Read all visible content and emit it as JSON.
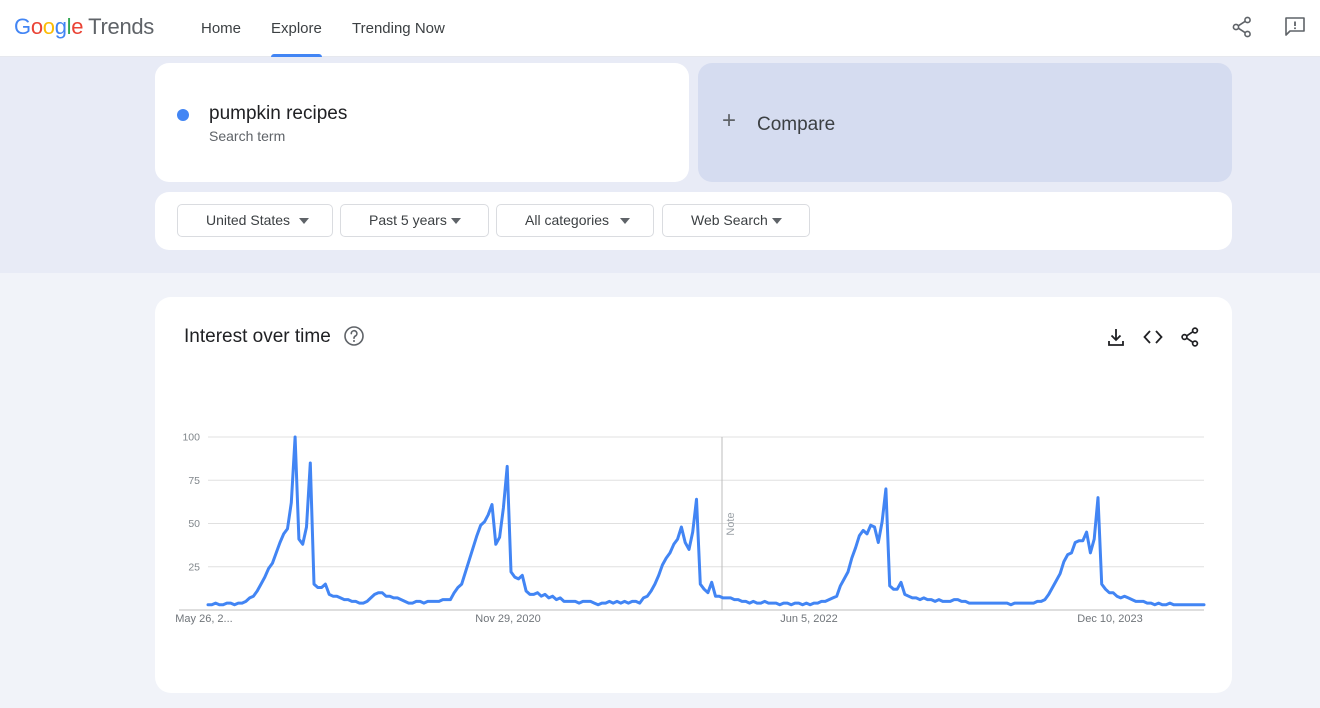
{
  "header": {
    "logo_google": [
      "G",
      "o",
      "o",
      "g",
      "l",
      "e"
    ],
    "logo_trends": "Trends",
    "nav": [
      {
        "label": "Home"
      },
      {
        "label": "Explore",
        "active": true
      },
      {
        "label": "Trending Now"
      }
    ],
    "icons": [
      "share-icon",
      "feedback-icon"
    ]
  },
  "search": {
    "term": "pumpkin recipes",
    "term_type": "Search term",
    "term_color": "#4285f4",
    "compare_label": "Compare"
  },
  "filters": {
    "region": "United States",
    "time_range": "Past 5 years",
    "category": "All categories",
    "search_type": "Web Search"
  },
  "interest_card": {
    "title": "Interest over time",
    "icons": [
      "help-icon",
      "download-icon",
      "embed-icon",
      "share-icon"
    ]
  },
  "chart_data": {
    "type": "line",
    "title": "Interest over time",
    "ylim": [
      0,
      100
    ],
    "yticks": [
      25,
      50,
      75,
      100
    ],
    "grid": true,
    "x_tick_labels": [
      "May 26, 2...",
      "Nov 29, 2020",
      "Jun 5, 2022",
      "Dec 10, 2023"
    ],
    "annotation": "Note",
    "series": [
      {
        "name": "pumpkin recipes",
        "color": "#4285f4",
        "values": [
          3,
          3,
          4,
          3,
          3,
          4,
          4,
          3,
          4,
          4,
          5,
          7,
          8,
          11,
          15,
          19,
          24,
          27,
          33,
          39,
          44,
          47,
          62,
          100,
          41,
          38,
          48,
          85,
          15,
          13,
          13,
          15,
          9,
          8,
          8,
          7,
          6,
          6,
          5,
          5,
          4,
          4,
          5,
          7,
          9,
          10,
          10,
          8,
          8,
          7,
          7,
          6,
          5,
          4,
          4,
          5,
          5,
          4,
          5,
          5,
          5,
          5,
          6,
          6,
          6,
          10,
          13,
          15,
          22,
          29,
          36,
          43,
          49,
          51,
          55,
          61,
          38,
          42,
          59,
          83,
          22,
          19,
          18,
          20,
          11,
          9,
          9,
          10,
          8,
          9,
          7,
          8,
          6,
          7,
          5,
          5,
          5,
          5,
          4,
          5,
          5,
          5,
          4,
          3,
          4,
          4,
          5,
          4,
          5,
          4,
          5,
          4,
          5,
          5,
          4,
          7,
          8,
          11,
          15,
          20,
          26,
          30,
          33,
          38,
          41,
          48,
          39,
          35,
          45,
          64,
          15,
          12,
          10,
          16,
          8,
          8,
          7,
          7,
          7,
          6,
          6,
          5,
          5,
          4,
          5,
          4,
          4,
          5,
          4,
          4,
          4,
          3,
          4,
          4,
          3,
          4,
          4,
          3,
          4,
          3,
          4,
          4,
          5,
          5,
          6,
          7,
          8,
          14,
          18,
          22,
          30,
          36,
          43,
          46,
          44,
          49,
          48,
          39,
          51,
          70,
          14,
          12,
          12,
          16,
          9,
          8,
          7,
          7,
          6,
          7,
          6,
          6,
          5,
          6,
          5,
          5,
          5,
          6,
          6,
          5,
          5,
          4,
          4,
          4,
          4,
          4,
          4,
          4,
          4,
          4,
          4,
          4,
          3,
          4,
          4,
          4,
          4,
          4,
          4,
          5,
          5,
          6,
          9,
          13,
          17,
          21,
          28,
          32,
          33,
          39,
          40,
          40,
          45,
          33,
          41,
          65,
          15,
          12,
          10,
          10,
          8,
          7,
          8,
          7,
          6,
          5,
          5,
          5,
          4,
          4,
          3,
          4,
          3,
          3,
          4,
          3,
          3,
          3,
          3,
          3,
          3,
          3,
          3,
          3
        ]
      }
    ]
  }
}
